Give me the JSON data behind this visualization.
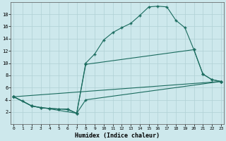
{
  "xlabel": "Humidex (Indice chaleur)",
  "bg_color": "#cde8ec",
  "grid_color": "#b0d0d5",
  "line_color": "#1a6b5e",
  "line1_x": [
    0,
    1,
    2,
    3,
    4,
    5,
    6,
    7,
    8,
    9,
    10,
    11,
    12,
    13,
    14,
    15,
    16,
    17,
    18,
    19,
    20,
    21,
    22,
    23
  ],
  "line1_y": [
    4.5,
    3.8,
    3.0,
    2.7,
    2.6,
    2.5,
    2.5,
    1.8,
    10.0,
    11.5,
    13.8,
    15.0,
    15.8,
    16.5,
    17.8,
    19.2,
    19.3,
    19.2,
    17.0,
    15.8,
    12.2,
    8.2,
    7.3,
    7.0
  ],
  "line2_x": [
    0,
    2,
    3,
    4,
    5,
    6,
    7,
    8,
    20,
    21,
    22,
    23
  ],
  "line2_y": [
    4.5,
    3.0,
    2.7,
    2.6,
    2.5,
    2.4,
    1.8,
    9.8,
    12.2,
    8.2,
    7.3,
    7.0
  ],
  "line3_x": [
    0,
    2,
    7,
    8,
    23
  ],
  "line3_y": [
    4.5,
    3.0,
    1.8,
    4.0,
    7.0
  ],
  "line4_x": [
    0,
    23
  ],
  "line4_y": [
    4.5,
    7.0
  ],
  "xlim": [
    0,
    23
  ],
  "ylim": [
    0,
    20
  ],
  "yticks": [
    2,
    4,
    6,
    8,
    10,
    12,
    14,
    16,
    18
  ],
  "xticks": [
    0,
    1,
    2,
    3,
    4,
    5,
    6,
    7,
    8,
    9,
    10,
    11,
    12,
    13,
    14,
    15,
    16,
    17,
    18,
    19,
    20,
    21,
    22,
    23
  ]
}
